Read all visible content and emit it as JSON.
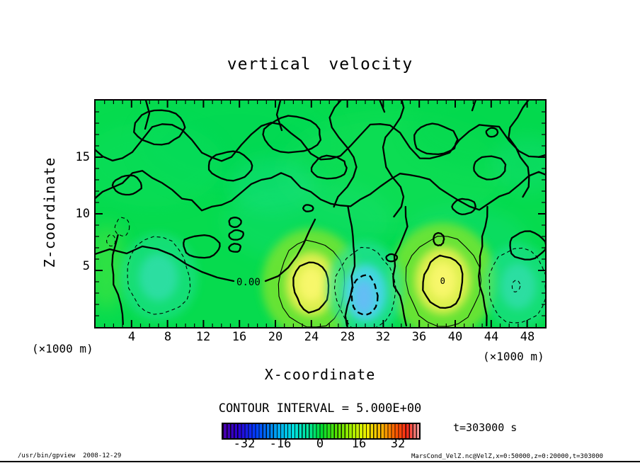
{
  "title": "vertical velocity",
  "plot": {
    "y_axis": {
      "label": "Z-coordinate",
      "ticks": [
        "15",
        "10",
        "5"
      ]
    },
    "x_axis": {
      "label": "X-coordinate",
      "ticks": [
        "4",
        "8",
        "12",
        "16",
        "20",
        "24",
        "28",
        "32",
        "36",
        "40",
        "44",
        "48"
      ]
    },
    "units": {
      "left": "(×1000 m)",
      "right": "(×1000 m)"
    }
  },
  "legend": {
    "contour_interval": "CONTOUR INTERVAL = 5.000E+00",
    "colorbar_ticks": [
      "-32",
      "-16",
      "0",
      "16",
      "32"
    ],
    "time": "t=303000 s"
  },
  "footer": {
    "left": "/usr/bin/gpview  2008-12-29",
    "right": "MarsCond_VelZ.nc@VelZ,x=0:50000,z=0:20000,t=303000"
  },
  "chart_data": {
    "type": "heatmap",
    "subtype": "filled_contour",
    "title": "vertical velocity",
    "xlabel": "X-coordinate",
    "ylabel": "Z-coordinate",
    "x_unit": "×1000 m",
    "y_unit": "×1000 m",
    "xlim": [
      0,
      50
    ],
    "ylim": [
      0,
      20
    ],
    "x_ticks": [
      4,
      8,
      12,
      16,
      20,
      24,
      28,
      32,
      36,
      40,
      44,
      48
    ],
    "y_ticks": [
      5,
      10,
      15
    ],
    "grid": false,
    "contour_interval": 5.0,
    "contour_line_styles": {
      "zero": "thick solid",
      "positive": "thin solid",
      "negative": "dashed"
    },
    "colorbar": {
      "ticks": [
        -32,
        -16,
        0,
        16,
        32
      ],
      "range": [
        -40,
        40
      ],
      "orientation": "horizontal",
      "palette": [
        "#4a00a8",
        "#0040ff",
        "#00a0f0",
        "#00e0e0",
        "#00dc32",
        "#aaee00",
        "#eeee00",
        "#ffb400",
        "#ff5a00",
        "#f0a0a0"
      ]
    },
    "time_label": "t=303000 s",
    "time_seconds": 303000,
    "features": [
      {
        "kind": "positive-maximum",
        "x": 24,
        "z": 3.8,
        "extent_x_km": 7.6,
        "extent_z_km": 7.8,
        "approx_value": 12
      },
      {
        "kind": "positive-maximum",
        "x": 38.6,
        "z": 4.1,
        "extent_x_km": 8.2,
        "extent_z_km": 8.2,
        "approx_value": 13,
        "label": "0"
      },
      {
        "kind": "negative-minimum",
        "x": 30,
        "z": 3.4,
        "extent_x_km": 6.6,
        "extent_z_km": 7.2,
        "approx_value": -13
      },
      {
        "kind": "negative-region",
        "x": 7,
        "z": 4.4,
        "extent_x_km": 7.2,
        "extent_z_km": 7.0,
        "approx_value": -6
      },
      {
        "kind": "negative-region",
        "x": 47,
        "z": 3.6,
        "extent_x_km": 6.6,
        "extent_z_km": 6.8,
        "approx_value": -6
      },
      {
        "kind": "zero-contour-label",
        "x": 17,
        "z": 4.0,
        "label": "0.00"
      }
    ],
    "field_description": "Mostly near-zero vertical velocity (uniform green) with wavy thick zero contours across the upper region; near z=2-6 km alternating updraft cells (yellow, solid contours) at x=24 and x=38.6 and downdraft cells (cyan-blue, dashed contours) at x=7, 30 and 47."
  }
}
